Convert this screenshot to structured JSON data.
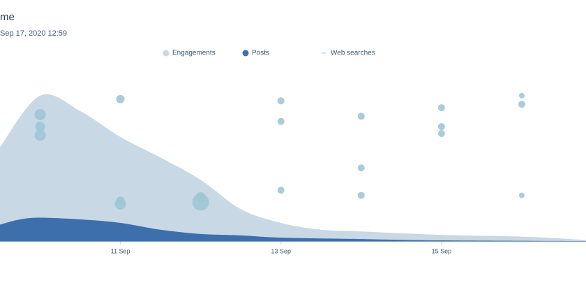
{
  "chart_data": {
    "type": "area",
    "title": "me",
    "subtitle": "Sep 17, 2020 12:59",
    "xlim": [
      9.5,
      16.8
    ],
    "ylim": [
      0,
      100
    ],
    "xticks": [
      {
        "value": 11,
        "label": "11 Sep"
      },
      {
        "value": 13,
        "label": "13 Sep"
      },
      {
        "value": 15,
        "label": "15 Sep"
      }
    ],
    "series": [
      {
        "name": "Engagements",
        "type": "area",
        "color": "#c8d8e4",
        "x": [
          9.5,
          10,
          10.5,
          11,
          11.5,
          12,
          12.5,
          13,
          13.5,
          14,
          15,
          16,
          16.8
        ],
        "values": [
          55,
          85,
          76,
          61,
          49,
          36,
          19,
          11,
          7,
          6,
          4,
          3,
          1
        ]
      },
      {
        "name": "Posts",
        "type": "area",
        "color": "#3d6fad",
        "x": [
          9.5,
          9.75,
          10,
          10.5,
          11,
          11.5,
          12,
          12.5,
          13,
          14,
          15,
          16.8
        ],
        "values": [
          10,
          13,
          14,
          13,
          11,
          7,
          4.5,
          3.7,
          2.4,
          1.6,
          0.8,
          0.4
        ]
      },
      {
        "name": "Web searches",
        "type": "scatter",
        "color": "#9fc7d6",
        "x": [
          10,
          10,
          10,
          11,
          11,
          11,
          12,
          12,
          13,
          13,
          13,
          14,
          14,
          14,
          15,
          15,
          15,
          16,
          16,
          16
        ],
        "values": [
          74,
          67,
          62,
          83,
          24,
          22,
          23,
          26,
          82,
          70,
          30,
          73,
          43,
          27,
          78,
          67,
          63,
          85,
          80,
          27
        ],
        "sizes": [
          8,
          7,
          8,
          6,
          6,
          8,
          12,
          7,
          5,
          5,
          5,
          5,
          5,
          5,
          5,
          5,
          5,
          4,
          5,
          4
        ]
      }
    ]
  }
}
